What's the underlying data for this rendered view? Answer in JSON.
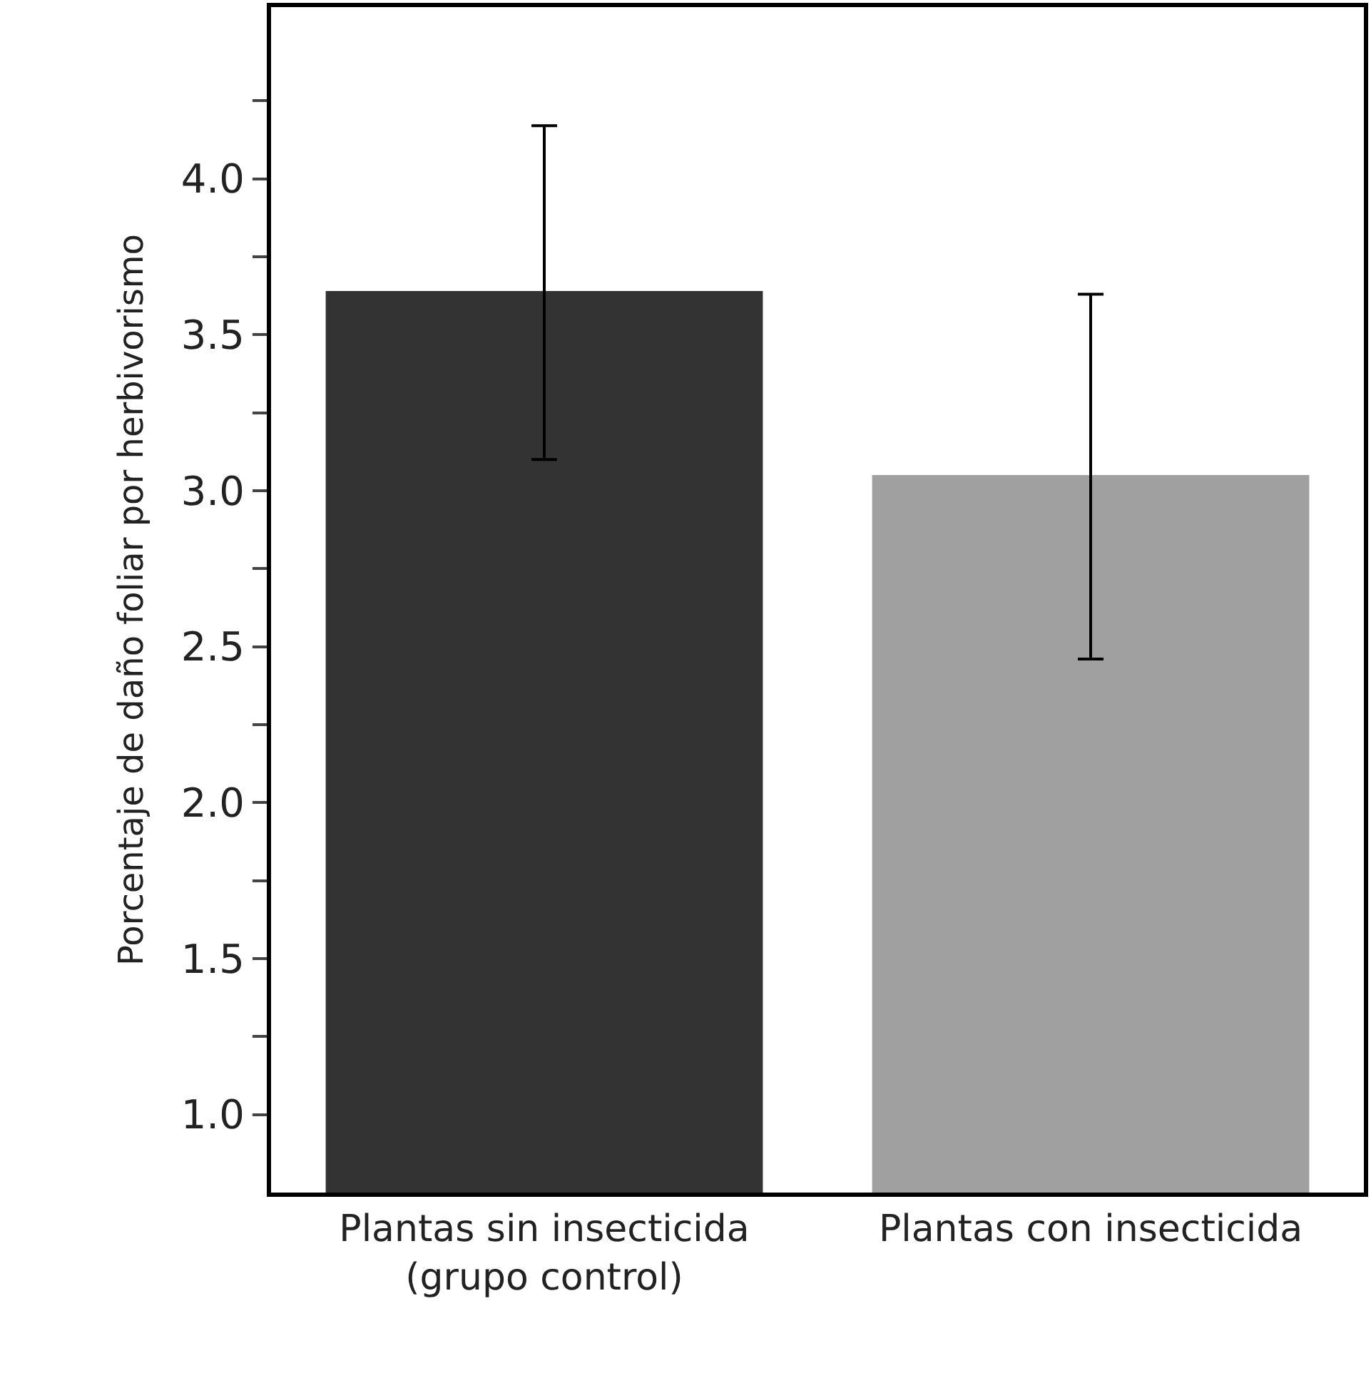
{
  "chart_data": {
    "type": "bar",
    "ylabel": "Porcentaje de daño foliar por herbivorismo",
    "categories": [
      "Plantas sin insecticida\n(grupo control)",
      "Plantas con insecticida"
    ],
    "values": [
      3.64,
      3.05
    ],
    "colors": [
      "#333333",
      "#a0a0a0"
    ],
    "errors": [
      [
        3.1,
        4.17
      ],
      [
        2.46,
        3.63
      ]
    ],
    "ylim": [
      0.75,
      4.55
    ],
    "yticks": [
      {
        "value": 1.0,
        "label": "1.0"
      },
      {
        "value": 1.25,
        "label": null
      },
      1.5,
      {
        "value": 1.75,
        "label": null
      },
      {
        "value": 2.0,
        "label": "2.0"
      },
      {
        "value": 2.25,
        "label": null
      },
      2.5,
      {
        "value": 2.75,
        "label": null
      },
      {
        "value": 3.0,
        "label": "3.0"
      },
      {
        "value": 3.25,
        "label": null
      },
      3.5,
      {
        "value": 3.75,
        "label": null
      },
      {
        "value": 4.0,
        "label": "4.0"
      },
      {
        "value": 4.25,
        "label": null
      }
    ]
  }
}
